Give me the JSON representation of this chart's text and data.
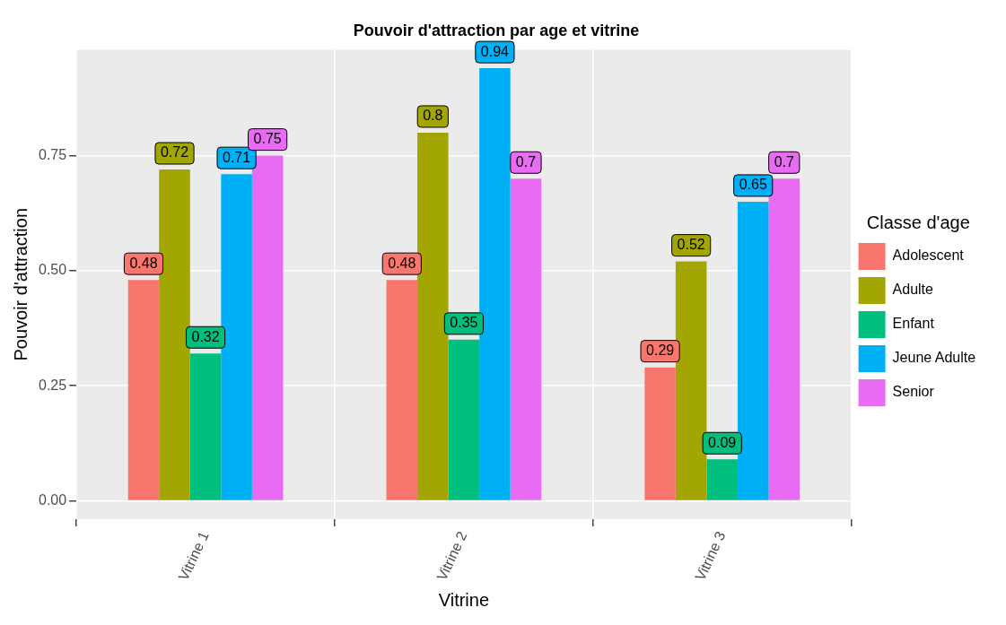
{
  "chart_data": {
    "type": "bar",
    "title": "Pouvoir d'attraction par age et vitrine",
    "xlabel": "Vitrine",
    "ylabel": "Pouvoir d'attraction",
    "legend_title": "Classe d'age",
    "categories": [
      "Vitrine 1",
      "Vitrine 2",
      "Vitrine 3"
    ],
    "series": [
      {
        "name": "Adolescent",
        "color": "#f8766d",
        "values": [
          0.48,
          0.48,
          0.29
        ]
      },
      {
        "name": "Adulte",
        "color": "#a3a500",
        "values": [
          0.72,
          0.8,
          0.52
        ]
      },
      {
        "name": "Enfant",
        "color": "#00bf7d",
        "values": [
          0.32,
          0.35,
          0.09
        ]
      },
      {
        "name": "Jeune Adulte",
        "color": "#00b0f6",
        "values": [
          0.71,
          0.94,
          0.65
        ]
      },
      {
        "name": "Senior",
        "color": "#e76bf3",
        "values": [
          0.75,
          0.7,
          0.7
        ]
      }
    ],
    "ylim": [
      -0.04,
      0.98
    ],
    "yticks": [
      {
        "value": 0,
        "label": "0.00"
      },
      {
        "value": 0.25,
        "label": "0.25"
      },
      {
        "value": 0.5,
        "label": "0.50"
      },
      {
        "value": 0.75,
        "label": "0.75"
      }
    ],
    "grid": true,
    "legend": "right",
    "data_labels": true
  }
}
